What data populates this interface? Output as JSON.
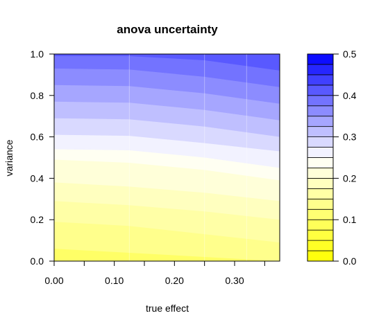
{
  "chart_data": {
    "type": "contour",
    "title": "anova uncertainty",
    "xlabel": "true effect",
    "ylabel": "variance",
    "xlim": [
      0.0,
      0.375
    ],
    "ylim": [
      0.0,
      1.0
    ],
    "x_ticks": [
      0.0,
      0.05,
      0.1,
      0.15,
      0.2,
      0.25,
      0.3,
      0.35
    ],
    "x_tick_labels": [
      "0.00",
      "0.10",
      "0.20",
      "0.30"
    ],
    "x_tick_label_values": [
      0.0,
      0.1,
      0.2,
      0.3
    ],
    "y_ticks": [
      0.0,
      0.2,
      0.4,
      0.6,
      0.8,
      1.0
    ],
    "y_tick_labels": [
      "0.0",
      "0.2",
      "0.4",
      "0.6",
      "0.8",
      "1.0"
    ],
    "colorbar": {
      "range": [
        0.0,
        0.5
      ],
      "ticks": [
        0.0,
        0.1,
        0.2,
        0.3,
        0.4,
        0.5
      ],
      "tick_labels": [
        "0.0",
        "0.1",
        "0.2",
        "0.3",
        "0.4",
        "0.5"
      ],
      "levels": 20,
      "low_color": "#ffff00",
      "mid_color": "#ffffff",
      "high_color": "#0000ff"
    },
    "contour_boundaries": [
      {
        "level": 0.225,
        "y_at_x": [
          [
            0.0,
            0.49
          ],
          [
            0.125,
            0.475
          ],
          [
            0.25,
            0.44
          ],
          [
            0.375,
            0.39
          ]
        ]
      },
      {
        "level": 0.25,
        "y_at_x": [
          [
            0.0,
            0.54
          ],
          [
            0.125,
            0.535
          ],
          [
            0.25,
            0.5
          ],
          [
            0.375,
            0.45
          ]
        ]
      },
      {
        "level": 0.275,
        "y_at_x": [
          [
            0.0,
            0.61
          ],
          [
            0.125,
            0.605
          ],
          [
            0.25,
            0.57
          ],
          [
            0.375,
            0.53
          ]
        ]
      },
      {
        "level": 0.3,
        "y_at_x": [
          [
            0.0,
            0.69
          ],
          [
            0.125,
            0.685
          ],
          [
            0.25,
            0.65
          ],
          [
            0.375,
            0.6
          ]
        ]
      },
      {
        "level": 0.325,
        "y_at_x": [
          [
            0.0,
            0.77
          ],
          [
            0.125,
            0.765
          ],
          [
            0.25,
            0.73
          ],
          [
            0.375,
            0.68
          ]
        ]
      },
      {
        "level": 0.35,
        "y_at_x": [
          [
            0.0,
            0.85
          ],
          [
            0.125,
            0.845
          ],
          [
            0.25,
            0.81
          ],
          [
            0.375,
            0.76
          ]
        ]
      },
      {
        "level": 0.375,
        "y_at_x": [
          [
            0.0,
            0.93
          ],
          [
            0.125,
            0.925
          ],
          [
            0.25,
            0.89
          ],
          [
            0.375,
            0.84
          ]
        ]
      },
      {
        "level": 0.4,
        "y_at_x": [
          [
            0.0,
            0.99
          ],
          [
            0.125,
            0.99
          ],
          [
            0.25,
            0.97
          ],
          [
            0.375,
            0.92
          ]
        ]
      }
    ],
    "lower_boundaries": [
      {
        "level": 0.2,
        "y_at_x": [
          [
            0.0,
            0.38
          ],
          [
            0.125,
            0.36
          ],
          [
            0.25,
            0.33
          ],
          [
            0.375,
            0.29
          ]
        ]
      },
      {
        "level": 0.175,
        "y_at_x": [
          [
            0.0,
            0.29
          ],
          [
            0.125,
            0.27
          ],
          [
            0.25,
            0.24
          ],
          [
            0.375,
            0.2
          ]
        ]
      },
      {
        "level": 0.15,
        "y_at_x": [
          [
            0.0,
            0.19
          ],
          [
            0.125,
            0.17
          ],
          [
            0.25,
            0.13
          ],
          [
            0.375,
            0.09
          ]
        ]
      },
      {
        "level": 0.125,
        "y_at_x": [
          [
            0.0,
            0.06
          ],
          [
            0.125,
            0.04
          ],
          [
            0.25,
            0.02
          ],
          [
            0.375,
            0.0
          ]
        ]
      }
    ],
    "bottom_level": 0.1,
    "top_level": 0.425,
    "grid": false,
    "legend": "right-colorbar"
  }
}
